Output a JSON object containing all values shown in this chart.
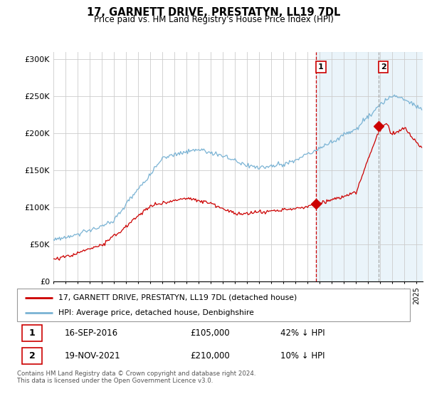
{
  "title": "17, GARNETT DRIVE, PRESTATYN, LL19 7DL",
  "subtitle": "Price paid vs. HM Land Registry's House Price Index (HPI)",
  "hpi_color": "#7ab3d4",
  "price_color": "#cc0000",
  "dashed_line1_color": "#cc0000",
  "dashed_line2_color": "#aaaaaa",
  "background_shade_color": "#ddeef8",
  "grid_color": "#cccccc",
  "ylim": [
    0,
    310000
  ],
  "yticks": [
    0,
    50000,
    100000,
    150000,
    200000,
    250000,
    300000
  ],
  "ytick_labels": [
    "£0",
    "£50K",
    "£100K",
    "£150K",
    "£200K",
    "£250K",
    "£300K"
  ],
  "xstart_year": 1995,
  "xend_year": 2025,
  "sale1_year": 2016.71,
  "sale1_price": 105000,
  "sale1_label": "1",
  "sale2_year": 2021.88,
  "sale2_price": 210000,
  "sale2_label": "2",
  "legend_line1": "17, GARNETT DRIVE, PRESTATYN, LL19 7DL (detached house)",
  "legend_line2": "HPI: Average price, detached house, Denbighshire",
  "table_row1": [
    "1",
    "16-SEP-2016",
    "£105,000",
    "42% ↓ HPI"
  ],
  "table_row2": [
    "2",
    "19-NOV-2021",
    "£210,000",
    "10% ↓ HPI"
  ],
  "footnote": "Contains HM Land Registry data © Crown copyright and database right 2024.\nThis data is licensed under the Open Government Licence v3.0."
}
